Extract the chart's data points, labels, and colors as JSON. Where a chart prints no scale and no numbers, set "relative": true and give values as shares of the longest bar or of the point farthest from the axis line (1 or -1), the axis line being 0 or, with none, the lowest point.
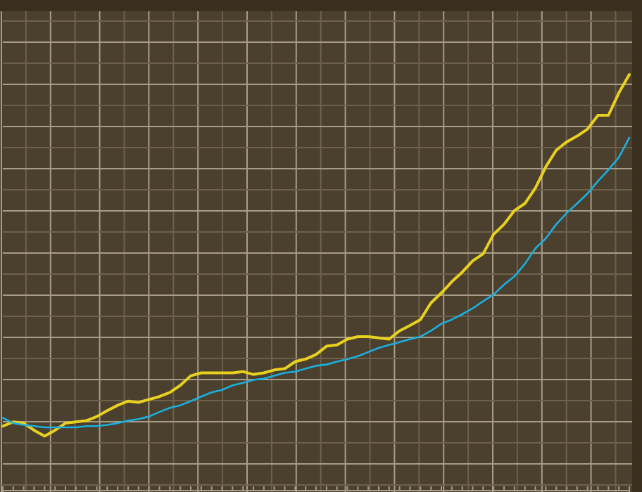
{
  "chart_data": {
    "type": "line",
    "relative": true,
    "grid": true,
    "categories": [
      null,
      null,
      null,
      null,
      null,
      null,
      null,
      null,
      null,
      null,
      null,
      null,
      null,
      null,
      null,
      null,
      null,
      null,
      null,
      null,
      null,
      null,
      null,
      null,
      null,
      null,
      null,
      null,
      null,
      null,
      null,
      null,
      null,
      null,
      null,
      null,
      null,
      null,
      null,
      null,
      null,
      null,
      null,
      null,
      null,
      null,
      null,
      null,
      null,
      null,
      null,
      null,
      null,
      null,
      null,
      null,
      null,
      null,
      null,
      null,
      null
    ],
    "series": [
      {
        "color": "#e8d020",
        "values": [
          0.155,
          0.165,
          0.162,
          0.145,
          0.131,
          0.145,
          0.162,
          0.165,
          0.168,
          0.178,
          0.192,
          0.205,
          0.215,
          0.212,
          0.219,
          0.226,
          0.236,
          0.253,
          0.276,
          0.283,
          0.283,
          0.283,
          0.283,
          0.286,
          0.279,
          0.283,
          0.29,
          0.293,
          0.31,
          0.316,
          0.327,
          0.347,
          0.35,
          0.364,
          0.37,
          0.37,
          0.367,
          0.364,
          0.384,
          0.397,
          0.411,
          0.451,
          0.475,
          0.502,
          0.525,
          0.552,
          0.569,
          0.616,
          0.64,
          0.673,
          0.69,
          0.727,
          0.778,
          0.818,
          0.838,
          0.852,
          0.869,
          0.902,
          0.902,
          0.956,
          1
        ]
      },
      {
        "color": "#1ab0e0",
        "values": [
          0.175,
          0.162,
          0.158,
          0.155,
          0.152,
          0.152,
          0.152,
          0.152,
          0.155,
          0.155,
          0.158,
          0.162,
          0.168,
          0.172,
          0.178,
          0.189,
          0.199,
          0.205,
          0.215,
          0.226,
          0.236,
          0.242,
          0.253,
          0.259,
          0.266,
          0.269,
          0.276,
          0.283,
          0.286,
          0.293,
          0.3,
          0.303,
          0.31,
          0.316,
          0.323,
          0.333,
          0.343,
          0.35,
          0.357,
          0.364,
          0.37,
          0.384,
          0.401,
          0.411,
          0.424,
          0.438,
          0.455,
          0.471,
          0.495,
          0.515,
          0.545,
          0.582,
          0.606,
          0.64,
          0.667,
          0.69,
          0.714,
          0.744,
          0.771,
          0.801,
          0.848
        ]
      }
    ]
  }
}
